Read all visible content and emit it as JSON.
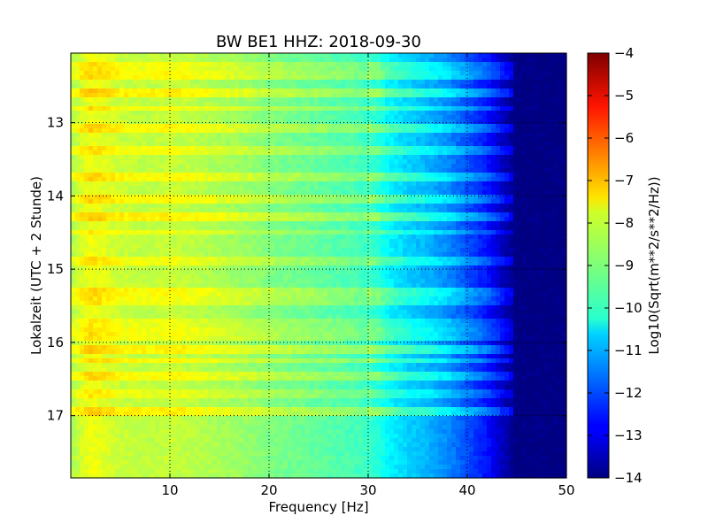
{
  "chart_data": {
    "type": "heatmap",
    "title": "BW BE1 HHZ: 2018-09-30",
    "xlabel": "Frequency [Hz]",
    "ylabel": "Lokalzeit (UTC + 2 Stunde)",
    "xlim": [
      0,
      50
    ],
    "ylim": [
      12.05,
      17.85
    ],
    "y_inverted": true,
    "xticks": [
      10,
      20,
      30,
      40,
      50
    ],
    "yticks": [
      13,
      14,
      15,
      16,
      17
    ],
    "grid": true,
    "colormap": "jet",
    "colorbar": {
      "label": "Log10(Sqrt(m**2/s**2/Hz))",
      "range": [
        -14,
        -4
      ],
      "ticks": [
        -4,
        -5,
        -6,
        -7,
        -8,
        -9,
        -10,
        -11,
        -12,
        -13,
        -14
      ]
    },
    "spectral_profile": {
      "frequency_hz": [
        0,
        1,
        2,
        3,
        5,
        8,
        10,
        12,
        15,
        18,
        20,
        25,
        28,
        30,
        31,
        32,
        34,
        36,
        38,
        40,
        42,
        43,
        44,
        45,
        50
      ],
      "log10_amplitude": [
        -8.6,
        -8.2,
        -7.9,
        -8.0,
        -8.3,
        -8.4,
        -8.3,
        -8.4,
        -8.6,
        -8.8,
        -9.0,
        -9.3,
        -9.5,
        -9.7,
        -9.9,
        -10.3,
        -10.7,
        -11.0,
        -11.4,
        -12.0,
        -12.6,
        -13.1,
        -13.6,
        -14.0,
        -14.0
      ]
    },
    "events": [
      {
        "time_h": 12.25,
        "log10_amplitude_increase": 0.5
      },
      {
        "time_h": 12.35,
        "log10_amplitude_increase": 0.6
      },
      {
        "time_h": 12.6,
        "log10_amplitude_increase": 0.7
      },
      {
        "time_h": 12.8,
        "log10_amplitude_increase": 0.5
      },
      {
        "time_h": 13.1,
        "log10_amplitude_increase": 0.6
      },
      {
        "time_h": 13.4,
        "log10_amplitude_increase": 0.5
      },
      {
        "time_h": 13.75,
        "log10_amplitude_increase": 0.6
      },
      {
        "time_h": 14.05,
        "log10_amplitude_increase": 0.6
      },
      {
        "time_h": 14.3,
        "log10_amplitude_increase": 0.7
      },
      {
        "time_h": 14.5,
        "log10_amplitude_increase": 0.4
      },
      {
        "time_h": 14.9,
        "log10_amplitude_increase": 0.5
      },
      {
        "time_h": 15.3,
        "log10_amplitude_increase": 0.6
      },
      {
        "time_h": 15.45,
        "log10_amplitude_increase": 0.5
      },
      {
        "time_h": 15.75,
        "log10_amplitude_increase": 0.4
      },
      {
        "time_h": 15.85,
        "log10_amplitude_increase": 0.5
      },
      {
        "time_h": 15.95,
        "log10_amplitude_increase": 0.5
      },
      {
        "time_h": 16.1,
        "log10_amplitude_increase": 0.7
      },
      {
        "time_h": 16.25,
        "log10_amplitude_increase": 0.6
      },
      {
        "time_h": 16.45,
        "log10_amplitude_increase": 0.6
      },
      {
        "time_h": 16.7,
        "log10_amplitude_increase": 0.4
      },
      {
        "time_h": 16.95,
        "log10_amplitude_increase": 0.7
      }
    ]
  }
}
